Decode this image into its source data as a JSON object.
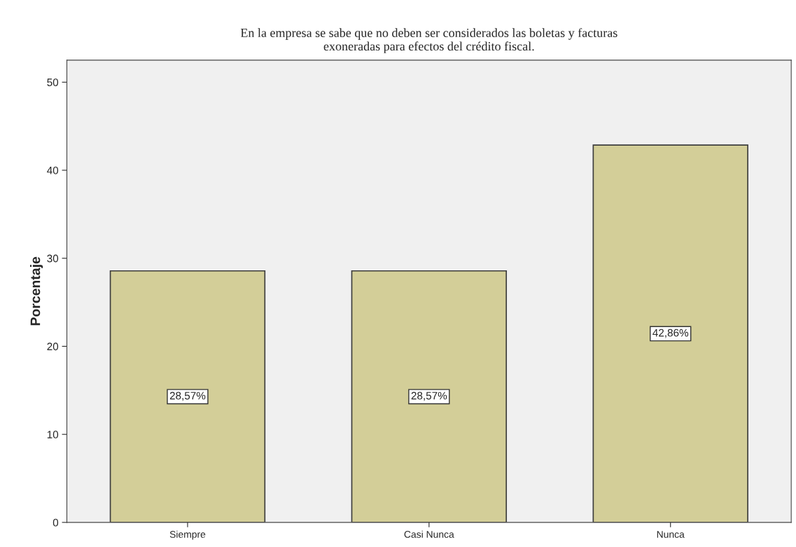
{
  "chart_data": {
    "type": "bar",
    "title": "En la empresa se sabe que no deben ser considerados las boletas y facturas\nexoneradas para efectos del crédito fiscal.",
    "ylabel": "Porcentaje",
    "categories": [
      "Siempre",
      "Casi Nunca",
      "Nunca"
    ],
    "values": [
      28.57,
      28.57,
      42.86
    ],
    "value_labels": [
      "28,57%",
      "28,57%",
      "42,86%"
    ],
    "color": "#d3ce98",
    "ylim": [
      0,
      52.5
    ],
    "yticks": [
      0,
      10,
      20,
      30,
      40,
      50
    ],
    "grid": false
  }
}
